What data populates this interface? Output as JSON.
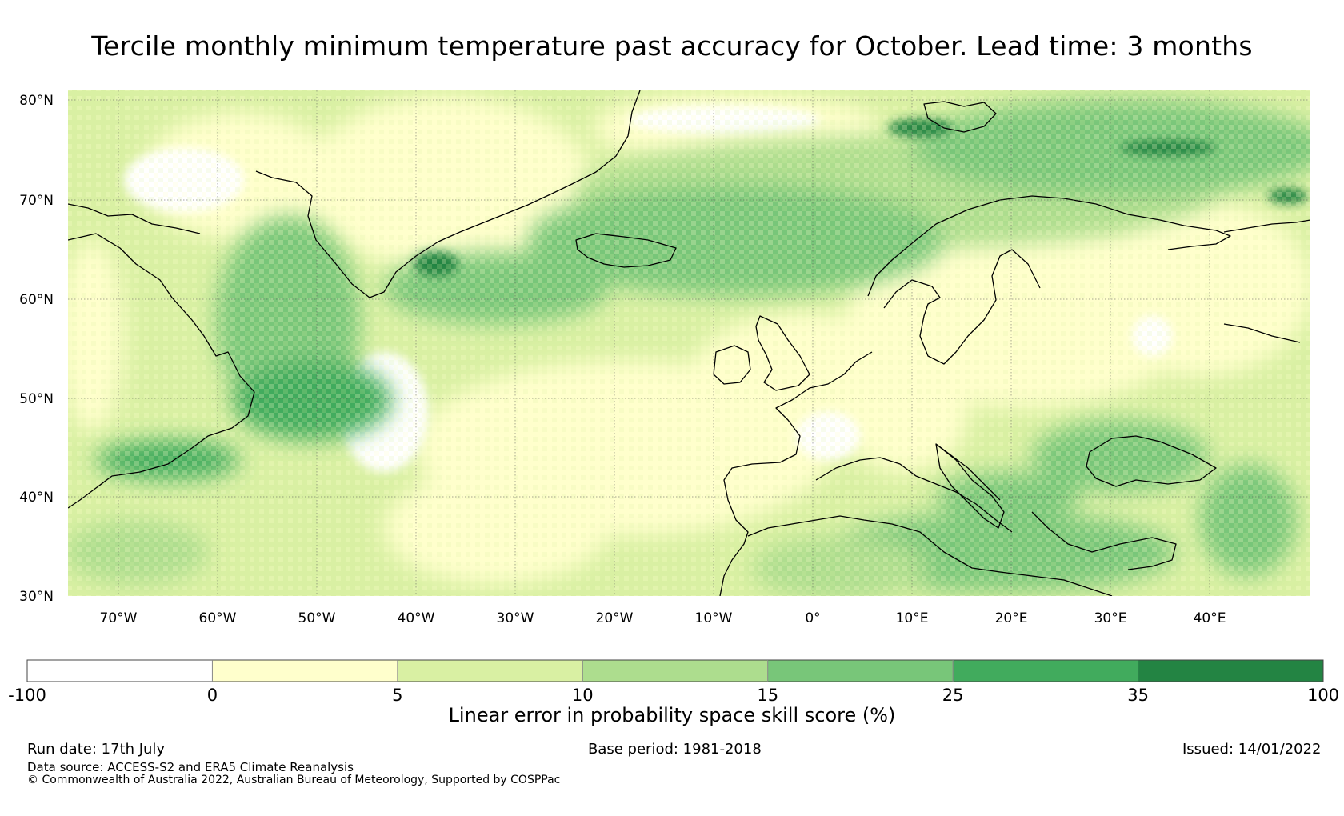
{
  "title": "Tercile monthly minimum temperature past accuracy for October. Lead time: 3 months",
  "map": {
    "lon_ticks": [
      "70°W",
      "60°W",
      "50°W",
      "40°W",
      "30°W",
      "20°W",
      "10°W",
      "0°",
      "10°E",
      "20°E",
      "30°E",
      "40°E"
    ],
    "lat_ticks": [
      "80°N",
      "70°N",
      "60°N",
      "50°N",
      "40°N",
      "30°N"
    ]
  },
  "colorbar": {
    "bins": [
      {
        "from": "-100",
        "to": "0",
        "color": "#ffffff"
      },
      {
        "from": "0",
        "to": "5",
        "color": "#ffffcc"
      },
      {
        "from": "5",
        "to": "10",
        "color": "#d9f0a3"
      },
      {
        "from": "10",
        "to": "15",
        "color": "#addd8e"
      },
      {
        "from": "15",
        "to": "25",
        "color": "#78c679"
      },
      {
        "from": "25",
        "to": "35",
        "color": "#41ab5d"
      },
      {
        "from": "35",
        "to": "100",
        "color": "#238443"
      }
    ],
    "tick_labels": [
      "-100",
      "0",
      "5",
      "10",
      "15",
      "25",
      "35",
      "100"
    ],
    "label": "Linear error in probability space skill score (%)"
  },
  "footer": {
    "run_date": "Run date: 17th July",
    "base_period": "Base period: 1981-2018",
    "issued": "Issued: 14/01/2022",
    "data_source": "Data source: ACCESS-S2 and ERA5 Climate Reanalysis",
    "copyright": "© Commonwealth of Australia 2022, Australian Bureau of Meteorology, Supported by COSPPac"
  }
}
